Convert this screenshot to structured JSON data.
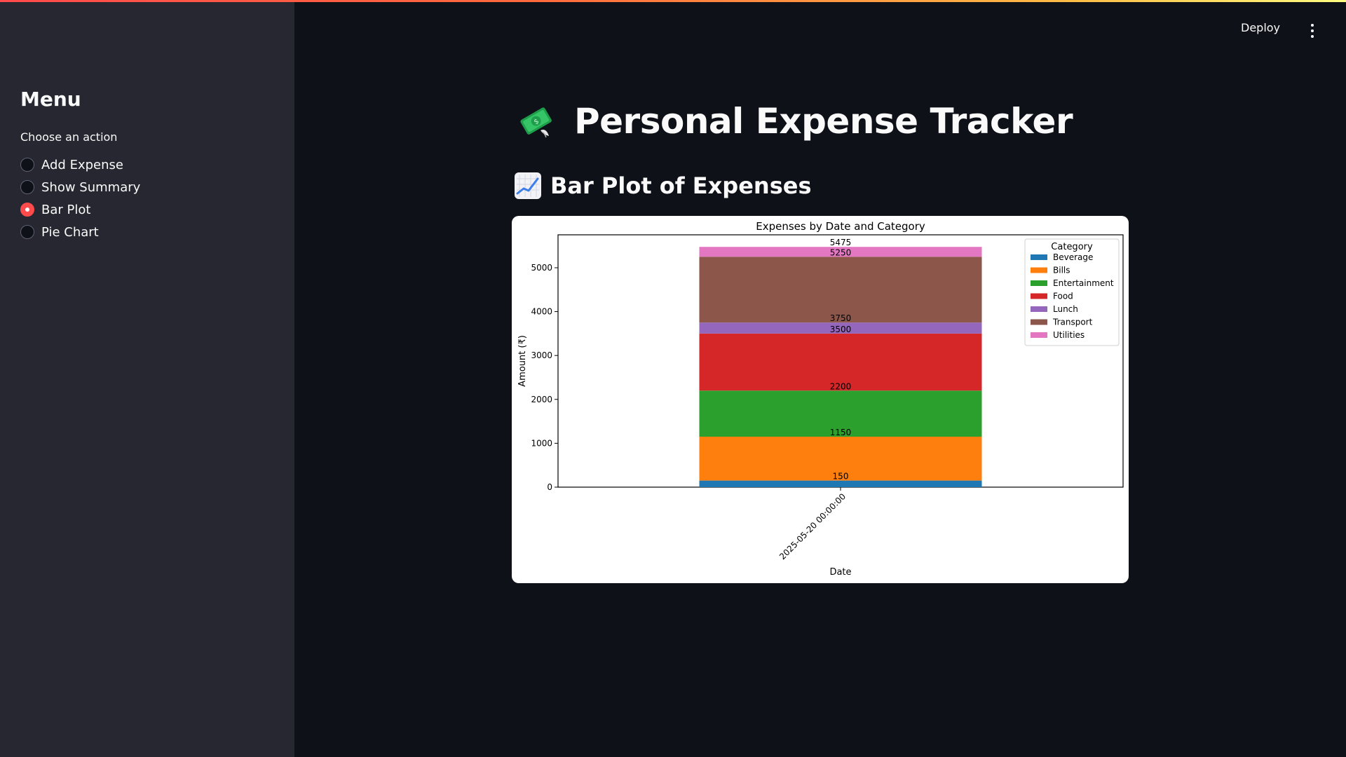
{
  "sidebar": {
    "title": "Menu",
    "radio_caption": "Choose an action",
    "options": [
      {
        "label": "Add Expense",
        "selected": false
      },
      {
        "label": "Show Summary",
        "selected": false
      },
      {
        "label": "Bar Plot",
        "selected": true
      },
      {
        "label": "Pie Chart",
        "selected": false
      }
    ]
  },
  "header": {
    "deploy_label": "Deploy",
    "menu_icon": "vertical-ellipsis-icon"
  },
  "main": {
    "title_icon": "money-with-wings-icon",
    "title": "Personal Expense Tracker",
    "subheader_icon": "chart-increasing-icon",
    "subheader": "Bar Plot of Expenses"
  },
  "theme": {
    "accent": "#ff4b4b",
    "background": "#0e1117",
    "sidebar_bg": "#262730"
  },
  "chart_data": {
    "type": "bar",
    "stacked": true,
    "title": "Expenses by Date and Category",
    "xlabel": "Date",
    "ylabel": "Amount (₹)",
    "categories": [
      "2025-05-20 00:00:00"
    ],
    "ylim": [
      0,
      5750
    ],
    "yticks": [
      0,
      1000,
      2000,
      3000,
      4000,
      5000
    ],
    "legend_title": "Category",
    "legend_position": "top-right",
    "series": [
      {
        "name": "Beverage",
        "values": [
          150
        ],
        "color": "#1f77b4"
      },
      {
        "name": "Bills",
        "values": [
          1000
        ],
        "color": "#ff7f0e"
      },
      {
        "name": "Entertainment",
        "values": [
          1050
        ],
        "color": "#2ca02c"
      },
      {
        "name": "Food",
        "values": [
          1300
        ],
        "color": "#d62728"
      },
      {
        "name": "Lunch",
        "values": [
          250
        ],
        "color": "#9467bd"
      },
      {
        "name": "Transport",
        "values": [
          1500
        ],
        "color": "#8c564b"
      },
      {
        "name": "Utilities",
        "values": [
          225
        ],
        "color": "#e377c2"
      }
    ],
    "data_labels": [
      "150",
      "1150",
      "2200",
      "3500",
      "3750",
      "5250",
      "5475"
    ]
  }
}
